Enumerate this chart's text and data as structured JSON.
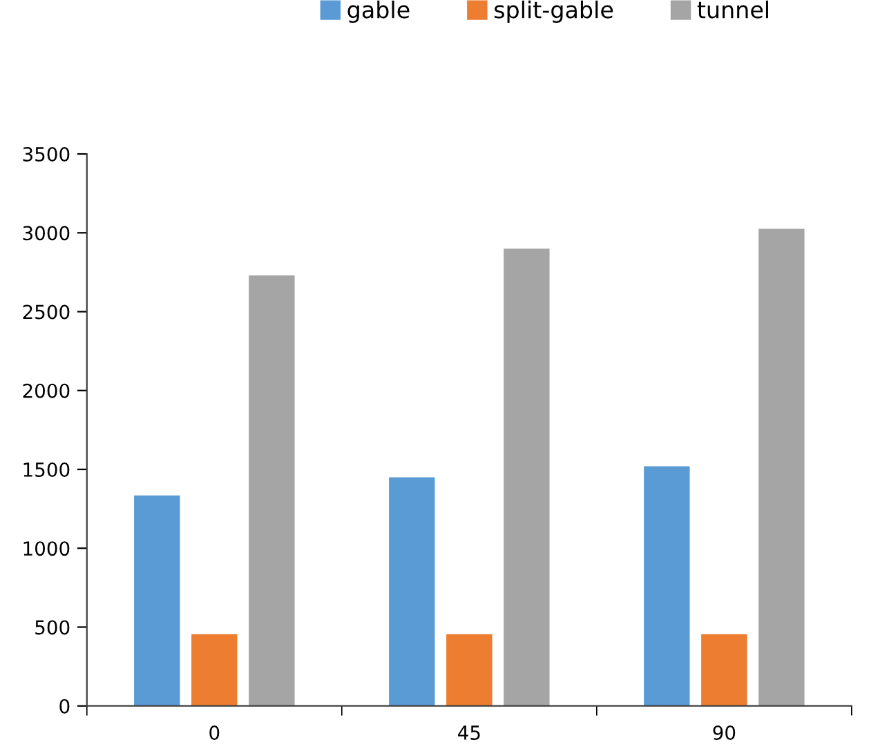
{
  "chart_data": {
    "type": "bar",
    "categories": [
      "0",
      "45",
      "90"
    ],
    "series": [
      {
        "name": "gable",
        "color": "#5b9bd5",
        "values": [
          1335,
          1450,
          1520
        ]
      },
      {
        "name": "split-gable",
        "color": "#ed7d31",
        "values": [
          455,
          455,
          455
        ]
      },
      {
        "name": "tunnel",
        "color": "#a5a5a5",
        "values": [
          2730,
          2900,
          3025
        ]
      }
    ],
    "ylim": [
      0,
      3500
    ],
    "yticks": [
      0,
      500,
      1000,
      1500,
      2000,
      2500,
      3000,
      3500
    ],
    "grid": false,
    "legend": "top"
  }
}
